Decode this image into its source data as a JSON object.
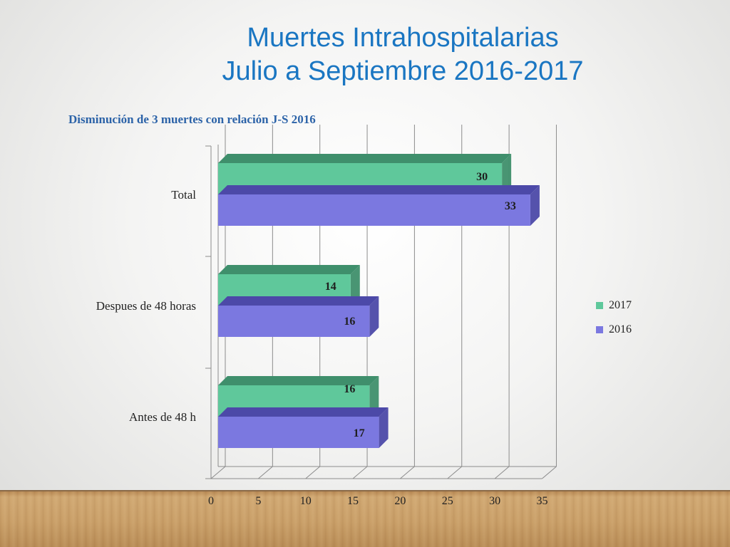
{
  "slide": {
    "title_line1": "Muertes Intrahospitalarias",
    "title_line2": "Julio a Septiembre 2016-2017",
    "subtitle": "Disminución  de 3 muertes con relación  J-S 2016"
  },
  "colors": {
    "series_2017": "#5fc89b",
    "series_2017_dark": "#3f8f6c",
    "series_2016": "#7b78e0",
    "series_2016_dark": "#4c49a8",
    "grid": "#8c8c8c"
  },
  "chart_data": {
    "type": "bar",
    "orientation": "horizontal",
    "categories": [
      "Antes de 48 h",
      "Despues de 48 horas",
      "Total"
    ],
    "series": [
      {
        "name": "2017",
        "values": [
          16,
          14,
          30
        ]
      },
      {
        "name": "2016",
        "values": [
          17,
          16,
          33
        ]
      }
    ],
    "xlim": [
      0,
      35
    ],
    "xticks": [
      "0",
      "5",
      "10",
      "15",
      "20",
      "25",
      "30",
      "35"
    ],
    "grid": true,
    "legend": "right",
    "three_d": true
  }
}
